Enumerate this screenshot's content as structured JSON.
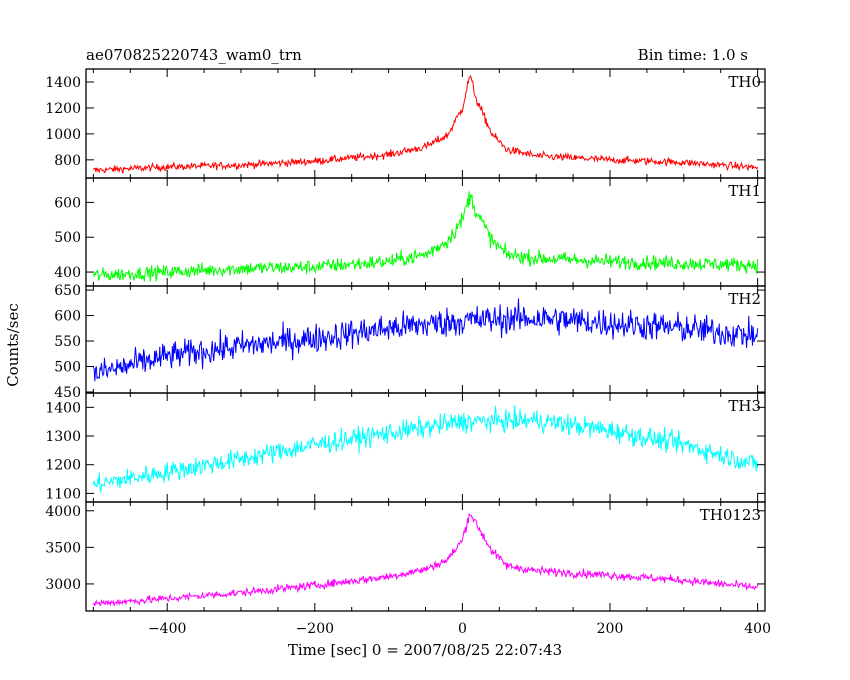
{
  "chart_data": {
    "type": "line",
    "title": "ae070825220743_wam0_trn",
    "subtitle": "Bin time: 1.0 s",
    "xlabel": "Time [sec] 0 = 2007/08/25 22:07:43",
    "ylabel": "Counts/sec",
    "xlim": [
      -510,
      410
    ],
    "xticks": [
      -400,
      -200,
      0,
      200,
      400
    ],
    "x_tick_labels": [
      "−400",
      "−200",
      "0",
      "200",
      "400"
    ],
    "grid": false,
    "panels": [
      {
        "name": "TH0",
        "color": "#ff0000",
        "ylim": [
          660,
          1500
        ],
        "yticks": [
          800,
          1000,
          1200,
          1400
        ],
        "points": [
          [
            -500,
            720
          ],
          [
            -400,
            745
          ],
          [
            -300,
            760
          ],
          [
            -200,
            790
          ],
          [
            -100,
            840
          ],
          [
            -50,
            900
          ],
          [
            -20,
            990
          ],
          [
            0,
            1200
          ],
          [
            10,
            1450
          ],
          [
            20,
            1250
          ],
          [
            40,
            1000
          ],
          [
            60,
            880
          ],
          [
            100,
            830
          ],
          [
            200,
            800
          ],
          [
            300,
            780
          ],
          [
            400,
            740
          ]
        ]
      },
      {
        "name": "TH1",
        "color": "#00ff00",
        "ylim": [
          360,
          670
        ],
        "yticks": [
          400,
          500,
          600
        ],
        "points": [
          [
            -500,
            390
          ],
          [
            -400,
            400
          ],
          [
            -300,
            410
          ],
          [
            -200,
            415
          ],
          [
            -100,
            430
          ],
          [
            -50,
            450
          ],
          [
            -20,
            490
          ],
          [
            0,
            550
          ],
          [
            10,
            620
          ],
          [
            20,
            570
          ],
          [
            40,
            490
          ],
          [
            60,
            450
          ],
          [
            100,
            440
          ],
          [
            200,
            430
          ],
          [
            300,
            425
          ],
          [
            400,
            420
          ]
        ]
      },
      {
        "name": "TH2",
        "color": "#0000ff",
        "ylim": [
          448,
          658
        ],
        "yticks": [
          450,
          500,
          550,
          600,
          650
        ],
        "points": [
          [
            -500,
            485
          ],
          [
            -400,
            520
          ],
          [
            -300,
            540
          ],
          [
            -200,
            555
          ],
          [
            -100,
            575
          ],
          [
            0,
            590
          ],
          [
            100,
            595
          ],
          [
            200,
            585
          ],
          [
            300,
            575
          ],
          [
            400,
            560
          ]
        ]
      },
      {
        "name": "TH3",
        "color": "#00ffff",
        "ylim": [
          1070,
          1450
        ],
        "yticks": [
          1100,
          1200,
          1300,
          1400
        ],
        "points": [
          [
            -500,
            1130
          ],
          [
            -400,
            1175
          ],
          [
            -300,
            1220
          ],
          [
            -200,
            1270
          ],
          [
            -100,
            1310
          ],
          [
            0,
            1350
          ],
          [
            100,
            1355
          ],
          [
            200,
            1320
          ],
          [
            300,
            1270
          ],
          [
            400,
            1200
          ]
        ]
      },
      {
        "name": "TH0123",
        "color": "#ff00ff",
        "ylim": [
          2630,
          4120
        ],
        "yticks": [
          3000,
          3500,
          4000
        ],
        "points": [
          [
            -500,
            2730
          ],
          [
            -400,
            2800
          ],
          [
            -300,
            2880
          ],
          [
            -200,
            2980
          ],
          [
            -100,
            3100
          ],
          [
            -50,
            3200
          ],
          [
            -20,
            3330
          ],
          [
            0,
            3600
          ],
          [
            10,
            3980
          ],
          [
            20,
            3800
          ],
          [
            40,
            3450
          ],
          [
            60,
            3250
          ],
          [
            100,
            3180
          ],
          [
            200,
            3120
          ],
          [
            300,
            3050
          ],
          [
            400,
            2950
          ]
        ]
      }
    ]
  }
}
